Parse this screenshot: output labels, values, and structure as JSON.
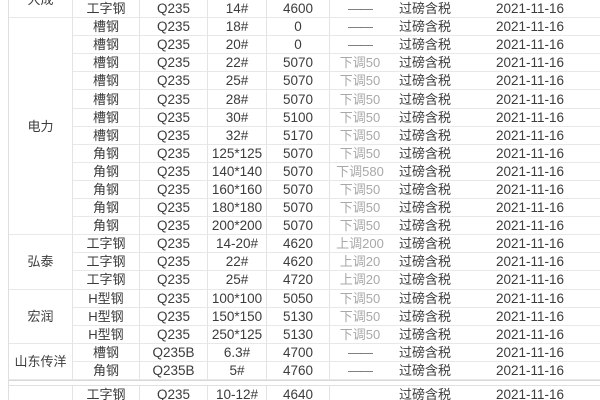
{
  "page": {
    "background": "#ffffff",
    "description_colors": {
      "text": "#3c3c3c",
      "change_muted": "#a8a8a8",
      "dash": "#6f6f6f",
      "row_border": "#e8e8e8",
      "column_border": "#e3e3e3",
      "section_border": "#d8d8d8"
    }
  },
  "table": {
    "rows": [
      {
        "company": "大成",
        "company_rowspan": 1,
        "company_continues_above": true,
        "type": "工字钢",
        "material": "Q235",
        "spec": "14#",
        "price": "4600",
        "change": "——",
        "note": "过磅含税",
        "date": "2021-11-16"
      },
      {
        "company": "电力",
        "company_rowspan": 12,
        "type": "槽钢",
        "material": "Q235",
        "spec": "18#",
        "price": "0",
        "change": "——",
        "note": "过磅含税",
        "date": "2021-11-16"
      },
      {
        "type": "槽钢",
        "material": "Q235",
        "spec": "20#",
        "price": "0",
        "change": "——",
        "note": "过磅含税",
        "date": "2021-11-16"
      },
      {
        "type": "槽钢",
        "material": "Q235",
        "spec": "22#",
        "price": "5070",
        "change": "下调50",
        "note": "过磅含税",
        "date": "2021-11-16"
      },
      {
        "type": "槽钢",
        "material": "Q235",
        "spec": "25#",
        "price": "5070",
        "change": "下调50",
        "note": "过磅含税",
        "date": "2021-11-16"
      },
      {
        "type": "槽钢",
        "material": "Q235",
        "spec": "28#",
        "price": "5070",
        "change": "下调50",
        "note": "过磅含税",
        "date": "2021-11-16"
      },
      {
        "type": "槽钢",
        "material": "Q235",
        "spec": "30#",
        "price": "5100",
        "change": "下调50",
        "note": "过磅含税",
        "date": "2021-11-16"
      },
      {
        "type": "槽钢",
        "material": "Q235",
        "spec": "32#",
        "price": "5170",
        "change": "下调50",
        "note": "过磅含税",
        "date": "2021-11-16"
      },
      {
        "type": "角钢",
        "material": "Q235",
        "spec": "125*125",
        "price": "5070",
        "change": "下调50",
        "note": "过磅含税",
        "date": "2021-11-16"
      },
      {
        "type": "角钢",
        "material": "Q235",
        "spec": "140*140",
        "price": "5070",
        "change": "下调580",
        "note": "过磅含税",
        "date": "2021-11-16"
      },
      {
        "type": "角钢",
        "material": "Q235",
        "spec": "160*160",
        "price": "5070",
        "change": "下调50",
        "note": "过磅含税",
        "date": "2021-11-16"
      },
      {
        "type": "角钢",
        "material": "Q235",
        "spec": "180*180",
        "price": "5070",
        "change": "下调50",
        "note": "过磅含税",
        "date": "2021-11-16"
      },
      {
        "type": "角钢",
        "material": "Q235",
        "spec": "200*200",
        "price": "5070",
        "change": "下调50",
        "note": "过磅含税",
        "date": "2021-11-16"
      },
      {
        "company": "弘泰",
        "company_rowspan": 3,
        "type": "工字钢",
        "material": "Q235",
        "spec": "14-20#",
        "price": "4620",
        "change": "上调200",
        "note": "过磅含税",
        "date": "2021-11-16"
      },
      {
        "type": "工字钢",
        "material": "Q235",
        "spec": "22#",
        "price": "4620",
        "change": "上调20",
        "note": "过磅含税",
        "date": "2021-11-16"
      },
      {
        "type": "工字钢",
        "material": "Q235",
        "spec": "25#",
        "price": "4720",
        "change": "上调20",
        "note": "过磅含税",
        "date": "2021-11-16"
      },
      {
        "company": "宏润",
        "company_rowspan": 3,
        "type": "H型钢",
        "material": "Q235",
        "spec": "100*100",
        "price": "5050",
        "change": "下调50",
        "note": "过磅含税",
        "date": "2021-11-16"
      },
      {
        "type": "H型钢",
        "material": "Q235",
        "spec": "150*150",
        "price": "5130",
        "change": "下调50",
        "note": "过磅含税",
        "date": "2021-11-16"
      },
      {
        "type": "H型钢",
        "material": "Q235",
        "spec": "250*125",
        "price": "5130",
        "change": "下调50",
        "note": "过磅含税",
        "date": "2021-11-16"
      },
      {
        "company": "山东传洋",
        "company_rowspan": 2,
        "type": "槽钢",
        "material": "Q235B",
        "spec": "6.3#",
        "price": "4700",
        "change": "——",
        "note": "过磅含税",
        "date": "2021-11-16"
      },
      {
        "type": "角钢",
        "material": "Q235B",
        "spec": "5#",
        "price": "4760",
        "change": "——",
        "note": "过磅含税",
        "date": "2021-11-16",
        "section_end": true
      },
      {
        "company": "",
        "company_rowspan": 1,
        "type": "工字钢",
        "material": "Q235",
        "spec": "10-12#",
        "price": "4640",
        "change": "",
        "note": "过磅含税",
        "date": "2021-11-16"
      }
    ]
  }
}
